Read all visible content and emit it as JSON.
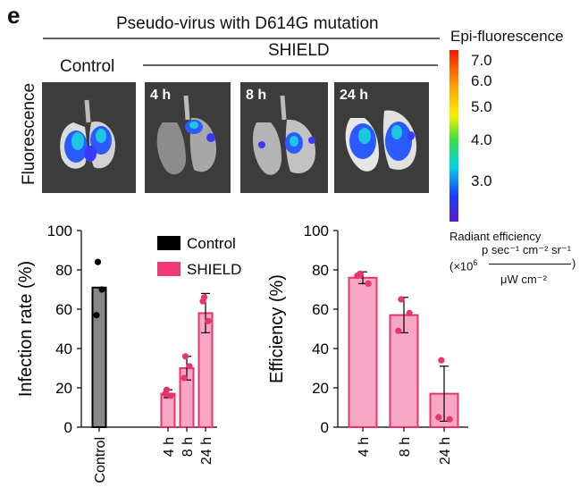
{
  "panel_letter": "e",
  "header": {
    "title": "Pseudo-virus with D614G mutation",
    "shield_label": "SHIELD",
    "control_label": "Control",
    "fluorescence_label": "Fluorescence",
    "image_time_labels": [
      "4 h",
      "8 h",
      "24 h"
    ]
  },
  "colorscale": {
    "title": "Epi-fluorescence",
    "ticks": [
      "7.0",
      "6.0",
      "5.0",
      "4.0",
      "3.0"
    ],
    "unit_line1": "Radiant efficiency",
    "unit_line2": "p sec⁻¹ cm⁻² sr⁻¹",
    "unit_prefix": "(×10",
    "unit_exp": "6",
    "unit_denominator": "μW cm⁻²",
    "unit_close": ")"
  },
  "colors": {
    "control": "#000000",
    "shield_fill": "#f7a6c4",
    "shield_edge": "#e8336f",
    "legend_shield": "#f03a78"
  },
  "chart_data": [
    {
      "type": "bar",
      "ylabel": "Infection rate (%)",
      "ylim": [
        0,
        100
      ],
      "yticks": [
        "0",
        "20",
        "40",
        "60",
        "80",
        "100"
      ],
      "categories": [
        "Control",
        "4 h",
        "8 h",
        "24 h"
      ],
      "series": [
        {
          "name": "Control",
          "values": [
            71,
            null,
            null,
            null
          ],
          "errors": [
            null,
            null,
            null,
            null
          ]
        },
        {
          "name": "SHIELD",
          "values": [
            null,
            17,
            30,
            58
          ],
          "errors": [
            null,
            2,
            6,
            10
          ]
        }
      ],
      "points": [
        [
          84,
          70,
          57
        ],
        [
          19,
          16,
          17
        ],
        [
          36,
          31,
          25
        ],
        [
          66,
          54,
          64
        ]
      ],
      "legend": [
        "Control",
        "SHIELD"
      ],
      "legend_position": "top-right"
    },
    {
      "type": "bar",
      "ylabel": "Efficiency (%)",
      "ylim": [
        0,
        100
      ],
      "yticks": [
        "0",
        "20",
        "40",
        "60",
        "80",
        "100"
      ],
      "categories": [
        "4 h",
        "8 h",
        "24 h"
      ],
      "series": [
        {
          "name": "SHIELD",
          "values": [
            76,
            57,
            17
          ],
          "errors": [
            3,
            9,
            14
          ]
        }
      ],
      "points": [
        [
          78,
          73,
          77
        ],
        [
          65,
          58,
          49
        ],
        [
          34,
          4,
          5
        ]
      ]
    }
  ]
}
